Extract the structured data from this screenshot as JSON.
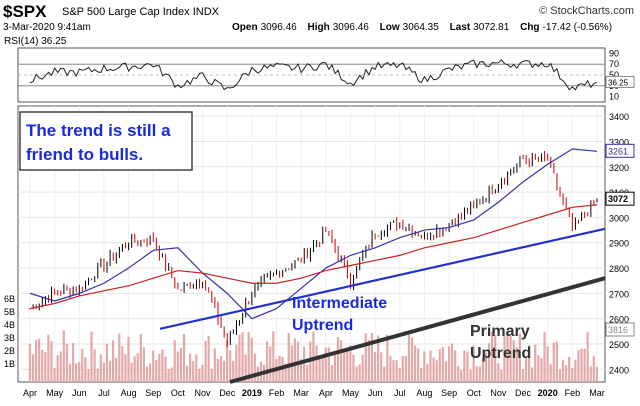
{
  "header": {
    "symbol": "$SPX",
    "name": "S&P 500 Large Cap Index",
    "exchange": "INDX",
    "brand": "© StockCharts.com",
    "date": "3-Mar-2020 9:41am",
    "ohlc": [
      {
        "label": "Open",
        "value": "3096.46"
      },
      {
        "label": "High",
        "value": "3096.46"
      },
      {
        "label": "Low",
        "value": "3064.35"
      },
      {
        "label": "Last",
        "value": "3072.81"
      },
      {
        "label": "Chg",
        "value": "-17.42 (-0.56%)"
      }
    ]
  },
  "rsi_panel": {
    "label": "RSI(14) 36.25",
    "ticks": [
      "90",
      "70",
      "50",
      "30",
      "10"
    ],
    "current_tag": "36.25"
  },
  "annotations": {
    "box": "The trend is still a friend to bulls.",
    "intermediate_line1": "Intermediate",
    "intermediate_line2": "Uptrend",
    "primary_line1": "Primary",
    "primary_line2": "Uptrend"
  },
  "chart_data": {
    "type": "candlestick",
    "price_ticks": [
      "3400",
      "3300",
      "3200",
      "3100",
      "3000",
      "2900",
      "2800",
      "2700",
      "2600",
      "2500",
      "2400"
    ],
    "price_range": [
      2350,
      3440
    ],
    "price_tags": {
      "ma50": "3261",
      "last": "3072",
      "volume": "3816"
    },
    "volume_ticks": [
      "6B",
      "5B",
      "4B",
      "3B",
      "2B",
      "1B"
    ],
    "x_labels": [
      "Apr",
      "May",
      "Jun",
      "Jul",
      "Aug",
      "Sep",
      "Oct",
      "Nov",
      "Dec",
      "2019",
      "Feb",
      "Mar",
      "Apr",
      "May",
      "Jun",
      "Jul",
      "Aug",
      "Sep",
      "Oct",
      "Nov",
      "Dec",
      "2020",
      "Feb",
      "Mar"
    ],
    "closes_monthly": [
      2640,
      2705,
      2718,
      2816,
      2901,
      2914,
      2711,
      2760,
      2506,
      2704,
      2784,
      2834,
      2946,
      2752,
      2942,
      2980,
      2926,
      2977,
      3038,
      3141,
      3231,
      3226,
      2954,
      3072
    ],
    "ma50_monthly": [
      2700,
      2670,
      2700,
      2740,
      2800,
      2870,
      2880,
      2780,
      2700,
      2600,
      2640,
      2720,
      2800,
      2850,
      2880,
      2920,
      2950,
      2960,
      2990,
      3060,
      3140,
      3210,
      3270,
      3261
    ],
    "ma200_monthly": [
      2640,
      2660,
      2690,
      2710,
      2730,
      2760,
      2790,
      2780,
      2760,
      2740,
      2740,
      2760,
      2790,
      2810,
      2830,
      2850,
      2880,
      2900,
      2920,
      2950,
      2980,
      3010,
      3040,
      3050
    ],
    "rsi_monthly": [
      40,
      55,
      55,
      62,
      65,
      70,
      30,
      48,
      22,
      60,
      65,
      62,
      70,
      35,
      65,
      68,
      40,
      60,
      70,
      72,
      70,
      72,
      25,
      36
    ],
    "trendlines": [
      {
        "name": "Intermediate Uptrend",
        "from": {
          "x": "Sep 2018",
          "y": 2560
        },
        "to": {
          "x": "Mar 2020",
          "y": 2955
        }
      },
      {
        "name": "Primary Uptrend",
        "from": {
          "x": "Dec 2018",
          "y": 2350
        },
        "to": {
          "x": "Mar 2020",
          "y": 2760
        }
      }
    ],
    "colors": {
      "up": "#000000",
      "down": "#cc0000",
      "ma50": "#3333aa",
      "ma200": "#cc2222",
      "intermediate": "#2233cc",
      "primary": "#333333",
      "annotation_text": "#1a2bd8",
      "volume": "#e3a9a9"
    }
  }
}
